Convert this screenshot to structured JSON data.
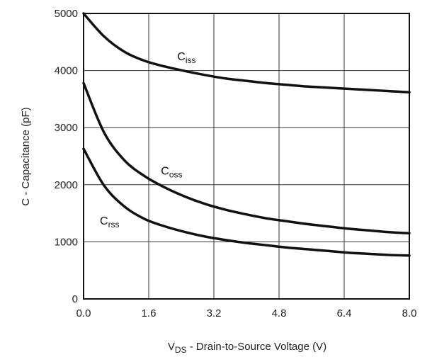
{
  "chart_data": {
    "type": "line",
    "xlabel": {
      "main": "V",
      "sub": "DS",
      "rest": " - Drain-to-Source Voltage (V)"
    },
    "ylabel": "C - Capacitance (pF)",
    "xlim": [
      0,
      8
    ],
    "ylim": [
      0,
      5000
    ],
    "xticks": [
      "0.0",
      "1.6",
      "3.2",
      "4.8",
      "6.4",
      "8.0"
    ],
    "yticks": [
      "0",
      "1000",
      "2000",
      "3000",
      "4000",
      "5000"
    ],
    "grid": true,
    "series": [
      {
        "name": {
          "main": "C",
          "sub": "iss"
        },
        "x": [
          0,
          0.5,
          1,
          1.5,
          2,
          2.5,
          3,
          3.5,
          4,
          4.5,
          5,
          5.5,
          6,
          6.5,
          7,
          7.5,
          8
        ],
        "y": [
          5000,
          4600,
          4330,
          4170,
          4070,
          3990,
          3920,
          3860,
          3820,
          3780,
          3750,
          3720,
          3700,
          3680,
          3660,
          3640,
          3620
        ]
      },
      {
        "name": {
          "main": "C",
          "sub": "oss"
        },
        "x": [
          0,
          0.5,
          1,
          1.5,
          2,
          2.5,
          3,
          3.5,
          4,
          4.5,
          5,
          5.5,
          6,
          6.5,
          7,
          7.5,
          8
        ],
        "y": [
          3780,
          2920,
          2430,
          2150,
          1950,
          1790,
          1660,
          1560,
          1480,
          1410,
          1360,
          1310,
          1270,
          1230,
          1200,
          1170,
          1150
        ]
      },
      {
        "name": {
          "main": "C",
          "sub": "rss"
        },
        "x": [
          0,
          0.5,
          1,
          1.5,
          2,
          2.5,
          3,
          3.5,
          4,
          4.5,
          5,
          5.5,
          6,
          6.5,
          7,
          7.5,
          8
        ],
        "y": [
          2630,
          1990,
          1620,
          1400,
          1270,
          1170,
          1090,
          1030,
          980,
          940,
          900,
          870,
          840,
          810,
          790,
          770,
          760
        ]
      }
    ]
  }
}
